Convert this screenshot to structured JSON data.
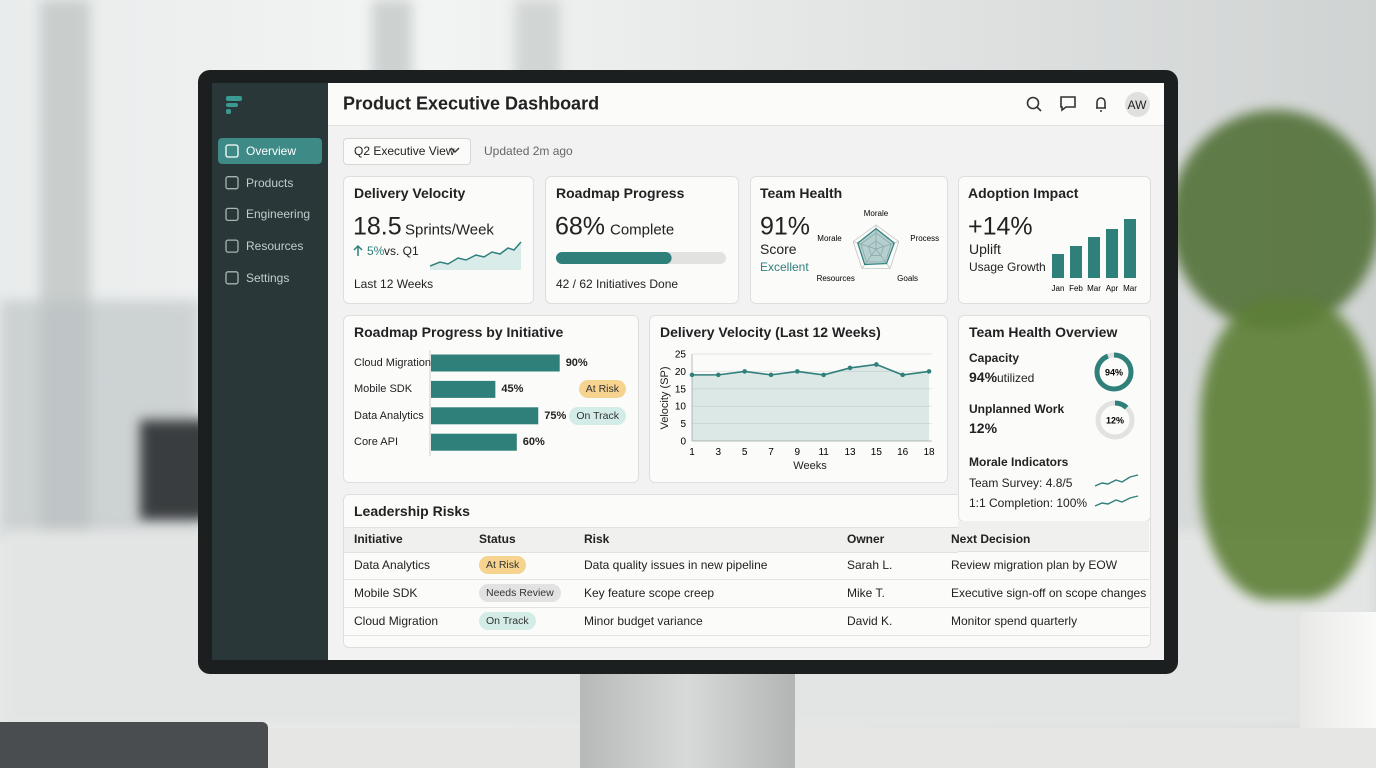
{
  "sidebar": {
    "nav": [
      "Overview",
      "Products",
      "Engineering",
      "Resources",
      "Settings"
    ]
  },
  "header": {
    "title": "Product Executive Dashboard",
    "avatar": "AW"
  },
  "toolbar": {
    "view": "Q2 Executive View",
    "updated": "Updated 2m ago"
  },
  "kpis": {
    "delivery_velocity": {
      "title": "Delivery Velocity",
      "value": "18.5",
      "unit": "Sprints/Week",
      "change": "5%",
      "comparison": "vs. Q1",
      "footer": "Last 12 Weeks"
    },
    "roadmap_progress": {
      "title": "Roadmap Progress",
      "value": 68,
      "value_label": "68%",
      "unit": "Complete",
      "xlim": [
        0,
        100
      ],
      "footer": "42 / 62 Initiatives Done",
      "color": "#2f7f7b"
    },
    "team_health": {
      "title": "Team Health",
      "value": "91%",
      "label": "Score",
      "status": "Excellent",
      "radar": {
        "axes": [
          "Morale",
          "Process",
          "Goals",
          "Resources",
          "Morale"
        ],
        "values": [
          85,
          80,
          75,
          80,
          80
        ],
        "rlim": [
          0,
          100
        ],
        "color": "#2f7f7b"
      }
    },
    "adoption_impact": {
      "title": "Adoption Impact",
      "value": "+14%",
      "label": "Uplift",
      "sublabel": "Usage Growth",
      "chart": {
        "type": "bar",
        "categories": [
          "Jan",
          "Feb",
          "Mar",
          "Apr",
          "Mar"
        ],
        "values": [
          24,
          32,
          41,
          49,
          59
        ],
        "ylim": [
          0,
          60
        ],
        "color": "#2f7f7b"
      }
    }
  },
  "initiative_progress": {
    "type": "bar",
    "title": "Roadmap Progress by Initiative",
    "categories": [
      "Cloud Migration",
      "Mobile SDK",
      "Data Analytics",
      "Core API"
    ],
    "values": [
      90,
      45,
      75,
      60
    ],
    "value_labels": [
      "90%",
      "45%",
      "75%",
      "60%"
    ],
    "badges": [
      null,
      "At Risk",
      "On Track",
      null
    ],
    "badge_colors": [
      null,
      "#f6d38e",
      "#d3ece7",
      null
    ],
    "xlim": [
      0,
      100
    ],
    "color": "#2f7f7b"
  },
  "velocity_chart": {
    "type": "line",
    "title": "Delivery Velocity (Last 12 Weeks)",
    "y_label": "Velocity (SP)",
    "x_label": "Weeks",
    "categories": [
      "1",
      "3",
      "5",
      "7",
      "9",
      "11",
      "13",
      "15",
      "16",
      "18"
    ],
    "values": [
      19,
      19,
      20,
      19,
      20,
      19,
      21,
      22,
      19,
      20
    ],
    "ylim": [
      0,
      25
    ],
    "yticks": [
      0,
      5,
      10,
      15,
      20,
      25
    ],
    "color": "#2f7f7b"
  },
  "team_health_overview": {
    "title": "Team Health Overview",
    "gauge_lim": [
      0,
      100
    ],
    "color": "#2f7f7b",
    "capacity": {
      "label": "Capacity",
      "value": 94,
      "value_label": "94%",
      "suffix": "utilized"
    },
    "unplanned": {
      "label": "Unplanned Work",
      "value": 12,
      "value_label": "12%"
    },
    "morale": {
      "title": "Morale Indicators",
      "items": [
        "Team Survey: 4.8/5",
        "1:1 Completion: 100%"
      ]
    }
  },
  "risks": {
    "title": "Leadership Risks",
    "columns": [
      "Initiative",
      "Status",
      "Risk",
      "Owner",
      "Next Decision"
    ],
    "rows": [
      [
        "Data Analytics",
        "At Risk",
        "Data quality issues in new pipeline",
        "Sarah L.",
        "Review migration plan by EOW"
      ],
      [
        "Mobile SDK",
        "Needs Review",
        "Key feature scope creep",
        "Mike T.",
        "Executive sign-off on scope changes"
      ],
      [
        "Cloud Migration",
        "On Track",
        "Minor budget variance",
        "David K.",
        "Monitor spend quarterly"
      ]
    ],
    "status_colors": [
      "#f6d38e",
      "#e2e2e2",
      "#d3ece7"
    ]
  }
}
